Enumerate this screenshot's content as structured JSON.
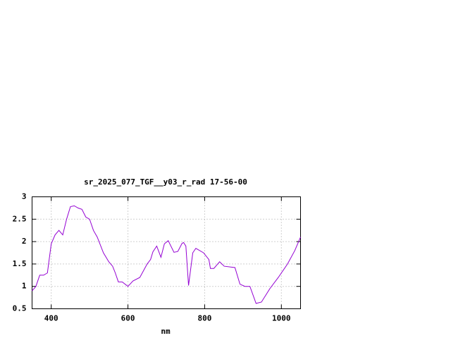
{
  "chart_data": {
    "type": "line",
    "title": "sr_2025_077_TGF__y03_r_rad 17-56-00",
    "x_label": "nm",
    "x": [
      350,
      360,
      370,
      380,
      390,
      400,
      410,
      420,
      430,
      440,
      450,
      460,
      470,
      480,
      490,
      500,
      510,
      520,
      536,
      550,
      560,
      567,
      575,
      585,
      600,
      613,
      631,
      650,
      659,
      665,
      675,
      686,
      695,
      705,
      720,
      730,
      741,
      745,
      751,
      758,
      769,
      777,
      797,
      811,
      815,
      824,
      839,
      851,
      879,
      892,
      905,
      918,
      934,
      948,
      970,
      992,
      1016,
      1035,
      1050
    ],
    "series": [
      {
        "color": "#9400d3",
        "values": [
          0.9,
          1.0,
          1.25,
          1.25,
          1.3,
          1.95,
          2.15,
          2.25,
          2.15,
          2.5,
          2.78,
          2.8,
          2.75,
          2.72,
          2.55,
          2.5,
          2.25,
          2.1,
          1.75,
          1.55,
          1.45,
          1.3,
          1.1,
          1.1,
          1.0,
          1.12,
          1.2,
          1.5,
          1.6,
          1.77,
          1.9,
          1.65,
          1.95,
          2.02,
          1.76,
          1.78,
          1.96,
          1.98,
          1.9,
          1.02,
          1.75,
          1.85,
          1.75,
          1.6,
          1.4,
          1.4,
          1.55,
          1.45,
          1.42,
          1.05,
          1.0,
          1.0,
          0.62,
          0.65,
          0.95,
          1.2,
          1.5,
          1.8,
          2.1
        ]
      }
    ],
    "xlim": [
      350,
      1050
    ],
    "xticks": [
      400,
      600,
      800,
      1000
    ],
    "ylim": [
      0.5,
      3
    ],
    "yticks": [
      0.5,
      1,
      1.5,
      2,
      2.5,
      3
    ],
    "grid": true
  }
}
